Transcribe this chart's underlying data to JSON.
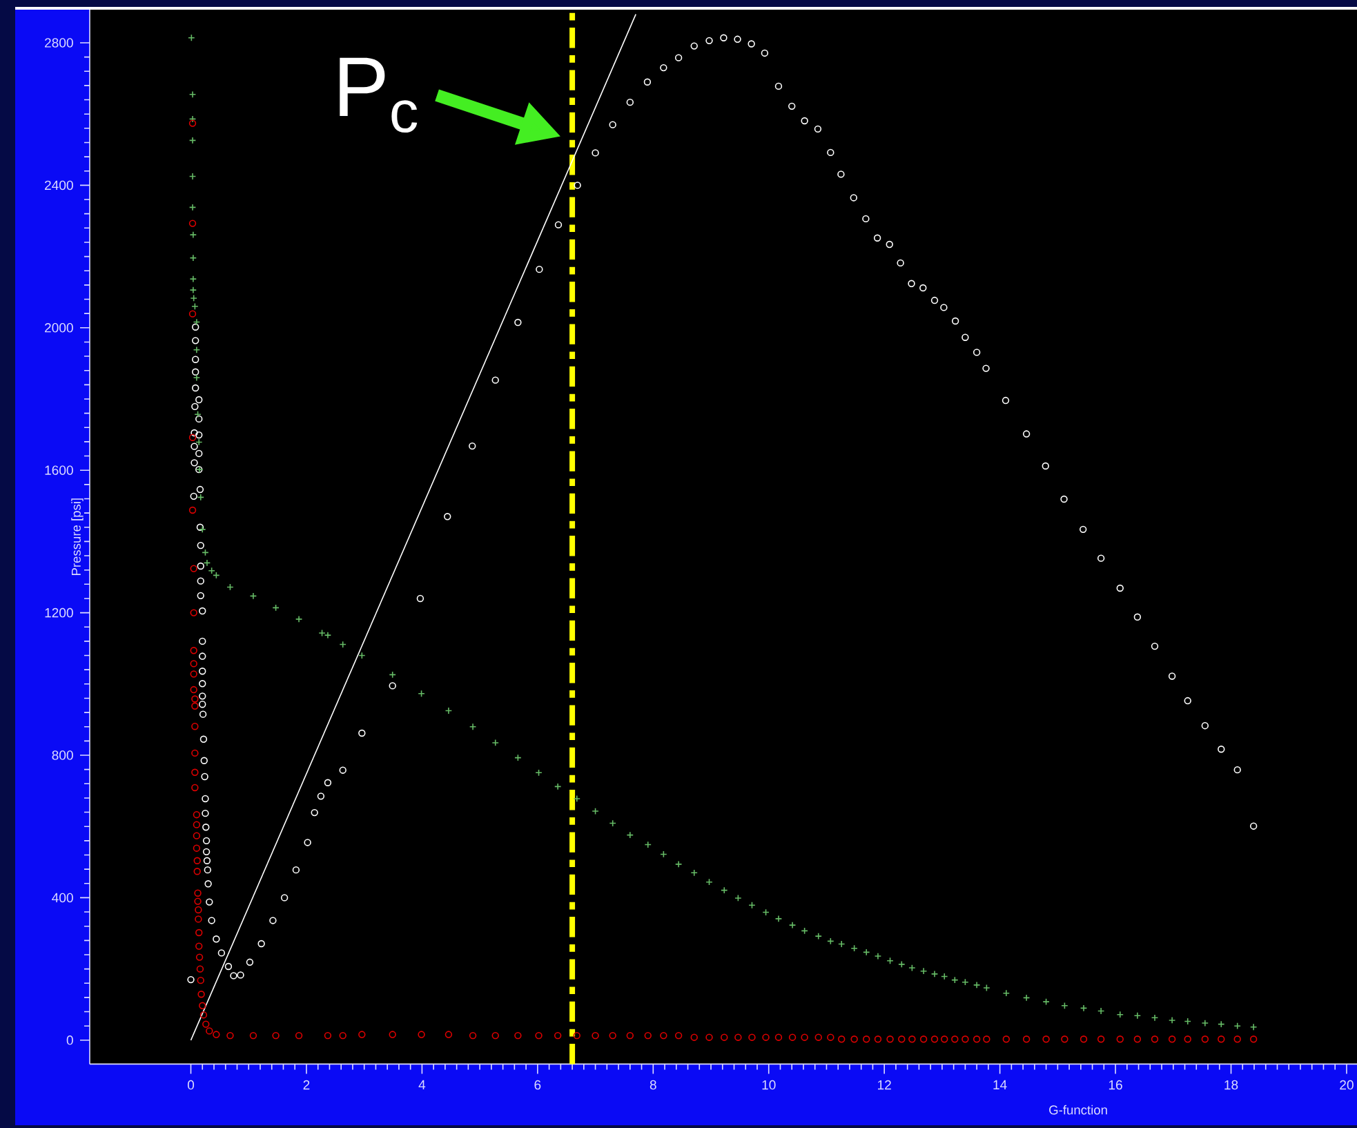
{
  "chart_data": {
    "type": "scatter",
    "xlabel": "G-function",
    "ylabel": "Pressure [psi]",
    "xlim": [
      -1.75,
      20.18
    ],
    "ylim": [
      -67,
      2893
    ],
    "xticks": [
      0,
      2,
      4,
      6,
      8,
      10,
      12,
      14,
      16,
      18,
      20
    ],
    "yticks": [
      0,
      400,
      800,
      1200,
      1600,
      2000,
      2400,
      2800
    ],
    "annotations": [
      {
        "text": "P$_{c}$",
        "x": 6.6,
        "y": 2490
      }
    ],
    "ref_lines": [
      {
        "axis": "x",
        "value": 6.6,
        "color": "#ffff00",
        "line_style": "dashed"
      }
    ],
    "series": [
      {
        "marker": "circle",
        "color": "#ffffff",
        "x": [
          0,
          0.08,
          0.08,
          0.08,
          0.08,
          0.08,
          0.14,
          0.07,
          0.14,
          0.06,
          0.14,
          0.06,
          0.14,
          0.06,
          0.14,
          0.16,
          0.05,
          0.16,
          0.17,
          0.17,
          0.17,
          0.17,
          0.2,
          0.2,
          0.2,
          0.2,
          0.2,
          0.2,
          0.2,
          0.21,
          0.22,
          0.23,
          0.24,
          0.25,
          0.25,
          0.26,
          0.27,
          0.27,
          0.28,
          0.29,
          0.3,
          0.32,
          0.36,
          0.44,
          0.53,
          0.65,
          0.74,
          0.86,
          1.02,
          1.22,
          1.42,
          1.62,
          1.82,
          2.02,
          2.14,
          2.25,
          2.37,
          2.63,
          2.96,
          3.49,
          3.97,
          4.44,
          4.87,
          5.27,
          5.66,
          6.03,
          6.36,
          6.69,
          7.0,
          7.3,
          7.6,
          7.9,
          8.18,
          8.44,
          8.71,
          8.97,
          9.22,
          9.46,
          9.7,
          9.93,
          10.17,
          10.4,
          10.62,
          10.85,
          11.07,
          11.25,
          11.47,
          11.68,
          11.88,
          12.09,
          12.28,
          12.47,
          12.67,
          12.87,
          13.03,
          13.23,
          13.4,
          13.6,
          13.76,
          14.1,
          14.46,
          14.79,
          15.11,
          15.44,
          15.75,
          16.08,
          16.38,
          16.68,
          16.98,
          17.25,
          17.55,
          17.83,
          18.11,
          18.39
        ],
        "values": [
          170,
          2002,
          1964,
          1911,
          1876,
          1831,
          1798,
          1779,
          1744,
          1705,
          1699,
          1667,
          1647,
          1621,
          1602,
          1546,
          1527,
          1440,
          1389,
          1331,
          1289,
          1248,
          1205,
          1120,
          1078,
          1036,
          1001,
          966,
          943,
          915,
          845,
          785,
          740,
          678,
          637,
          598,
          560,
          529,
          504,
          478,
          439,
          388,
          336,
          284,
          245,
          207,
          181,
          183,
          219,
          271,
          336,
          400,
          478,
          555,
          639,
          685,
          723,
          758,
          862,
          995,
          1240,
          1470,
          1668,
          1853,
          2015,
          2164,
          2289,
          2400,
          2491,
          2570,
          2633,
          2690,
          2730,
          2758,
          2791,
          2806,
          2814,
          2810,
          2797,
          2771,
          2678,
          2622,
          2581,
          2558,
          2492,
          2431,
          2365,
          2306,
          2252,
          2234,
          2182,
          2124,
          2112,
          2077,
          2057,
          2019,
          1973,
          1931,
          1886,
          1796,
          1702,
          1612,
          1519,
          1434,
          1353,
          1269,
          1188,
          1106,
          1022,
          953,
          883,
          817,
          759,
          601
        ]
      },
      {
        "marker": "cross",
        "color": "#66bb66",
        "x": [
          0.01,
          0.03,
          0.03,
          0.03,
          0.03,
          0.03,
          0.04,
          0.04,
          0.04,
          0.04,
          0.05,
          0.07,
          0.1,
          0.1,
          0.1,
          0.12,
          0.14,
          0.15,
          0.17,
          0.2,
          0.25,
          0.28,
          0.36,
          0.44,
          0.68,
          1.08,
          1.47,
          1.87,
          2.27,
          2.37,
          2.63,
          2.96,
          3.49,
          3.99,
          4.46,
          4.88,
          5.27,
          5.66,
          6.02,
          6.35,
          6.68,
          7.0,
          7.3,
          7.6,
          7.91,
          8.18,
          8.44,
          8.71,
          8.97,
          9.23,
          9.47,
          9.71,
          9.95,
          10.17,
          10.41,
          10.62,
          10.86,
          11.07,
          11.26,
          11.48,
          11.69,
          11.89,
          12.1,
          12.3,
          12.48,
          12.68,
          12.87,
          13.04,
          13.22,
          13.4,
          13.6,
          13.77,
          14.11,
          14.46,
          14.8,
          15.12,
          15.45,
          15.75,
          16.08,
          16.38,
          16.68,
          16.98,
          17.25,
          17.55,
          17.83,
          18.11,
          18.39
        ],
        "values": [
          2814,
          2655,
          2586,
          2526,
          2425,
          2338,
          2261,
          2196,
          2137,
          2106,
          2083,
          2060,
          2016,
          1938,
          1860,
          1757,
          1679,
          1602,
          1524,
          1434,
          1369,
          1340,
          1318,
          1305,
          1272,
          1247,
          1214,
          1182,
          1143,
          1137,
          1111,
          1080,
          1026,
          973,
          925,
          880,
          835,
          793,
          751,
          712,
          678,
          643,
          609,
          576,
          549,
          522,
          494,
          470,
          444,
          421,
          399,
          379,
          359,
          341,
          323,
          307,
          292,
          278,
          270,
          258,
          247,
          236,
          223,
          213,
          203,
          194,
          186,
          179,
          169,
          163,
          155,
          147,
          132,
          119,
          108,
          97,
          90,
          82,
          72,
          69,
          63,
          56,
          53,
          48,
          45,
          40,
          37
        ]
      },
      {
        "marker": "circle",
        "color": "#dd0000",
        "x": [
          0.03,
          0.03,
          0.03,
          0.03,
          0.03,
          0.05,
          0.05,
          0.05,
          0.05,
          0.05,
          0.05,
          0.07,
          0.07,
          0.07,
          0.07,
          0.07,
          0.07,
          0.1,
          0.1,
          0.1,
          0.1,
          0.11,
          0.11,
          0.12,
          0.12,
          0.13,
          0.13,
          0.14,
          0.14,
          0.15,
          0.16,
          0.17,
          0.18,
          0.2,
          0.22,
          0.26,
          0.32,
          0.44,
          0.68,
          1.08,
          1.47,
          1.87,
          2.37,
          2.63,
          2.96,
          3.49,
          3.99,
          4.46,
          4.88,
          5.27,
          5.66,
          6.02,
          6.35,
          6.68,
          7.0,
          7.3,
          7.6,
          7.91,
          8.18,
          8.44,
          8.71,
          8.97,
          9.23,
          9.47,
          9.71,
          9.95,
          10.17,
          10.41,
          10.62,
          10.86,
          11.07,
          11.26,
          11.48,
          11.69,
          11.89,
          12.1,
          12.3,
          12.48,
          12.68,
          12.87,
          13.04,
          13.22,
          13.4,
          13.6,
          13.77,
          14.11,
          14.46,
          14.8,
          15.12,
          15.45,
          15.75,
          16.08,
          16.38,
          16.68,
          16.98,
          17.25,
          17.55,
          17.83,
          18.11,
          18.39
        ],
        "values": [
          2574,
          2293,
          2039,
          1692,
          1488,
          1324,
          1200,
          1094,
          1057,
          1028,
          984,
          958,
          938,
          881,
          806,
          752,
          709,
          633,
          605,
          574,
          539,
          504,
          474,
          413,
          390,
          366,
          340,
          302,
          264,
          233,
          200,
          168,
          129,
          97,
          71,
          45,
          26,
          16,
          13,
          13,
          13,
          13,
          13,
          13,
          16,
          16,
          16,
          16,
          13,
          13,
          13,
          13,
          13,
          13,
          13,
          13,
          13,
          13,
          13,
          13,
          8,
          8,
          8,
          8,
          8,
          8,
          8,
          8,
          8,
          8,
          8,
          3,
          3,
          3,
          3,
          3,
          3,
          3,
          3,
          3,
          3,
          3,
          3,
          3,
          3,
          3,
          3,
          3,
          3,
          3,
          3,
          3,
          3,
          3,
          3,
          3,
          3,
          3,
          3,
          3
        ]
      },
      {
        "type": "line",
        "color": "#ffffff",
        "x": [
          0,
          7.7
        ],
        "values": [
          0,
          2880
        ]
      }
    ]
  }
}
